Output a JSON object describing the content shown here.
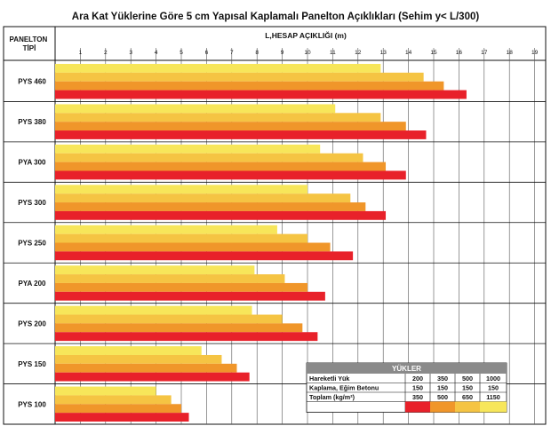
{
  "chart_data": {
    "type": "bar",
    "orientation": "horizontal",
    "title": "Ara Kat Yüklerine Göre 5 cm Yapısal Kaplamalı Panelton Açıklıkları (Sehim y< L/300)",
    "row_header": "PANELTON\nTİPİ",
    "xlabel": "L,HESAP AÇIKLIĞI (m)",
    "xlim": [
      0,
      19
    ],
    "xticks": [
      1,
      2,
      3,
      4,
      5,
      6,
      7,
      8,
      9,
      10,
      11,
      12,
      13,
      14,
      15,
      16,
      17,
      18,
      19
    ],
    "grid": true,
    "categories": [
      "PYS 460",
      "PYS 380",
      "PYA 300",
      "PYS 300",
      "PYS 250",
      "PYA 200",
      "PYS 200",
      "PYS 150",
      "PYS 100"
    ],
    "series": [
      {
        "name": "350",
        "color": "#f7e65a",
        "values": [
          12.9,
          11.1,
          10.5,
          10.0,
          8.8,
          7.9,
          7.8,
          5.8,
          4.0
        ]
      },
      {
        "name": "500",
        "color": "#f5c443",
        "values": [
          14.6,
          12.9,
          12.2,
          11.7,
          10.0,
          9.1,
          9.0,
          6.6,
          4.6
        ]
      },
      {
        "name": "650",
        "color": "#f0962a",
        "values": [
          15.4,
          13.9,
          13.1,
          12.3,
          10.9,
          10.0,
          9.8,
          7.2,
          5.0
        ]
      },
      {
        "name": "1150",
        "color": "#e8212a",
        "values": [
          16.3,
          14.7,
          13.9,
          13.1,
          11.8,
          10.7,
          10.4,
          7.7,
          5.3
        ]
      }
    ],
    "legend": {
      "title": "YÜKLER",
      "placement": "bottom-right",
      "rows": [
        {
          "label": "Hareketli Yük",
          "values": [
            "200",
            "350",
            "500",
            "1000"
          ]
        },
        {
          "label": "Kaplama, Eğim Betonu",
          "values": [
            "150",
            "150",
            "150",
            "150"
          ]
        },
        {
          "label": "Toplam (kg/m²)",
          "values": [
            "350",
            "500",
            "650",
            "1150"
          ]
        }
      ],
      "swatch_colors": [
        "#e8212a",
        "#f0962a",
        "#f5c443",
        "#f7e65a"
      ]
    }
  }
}
